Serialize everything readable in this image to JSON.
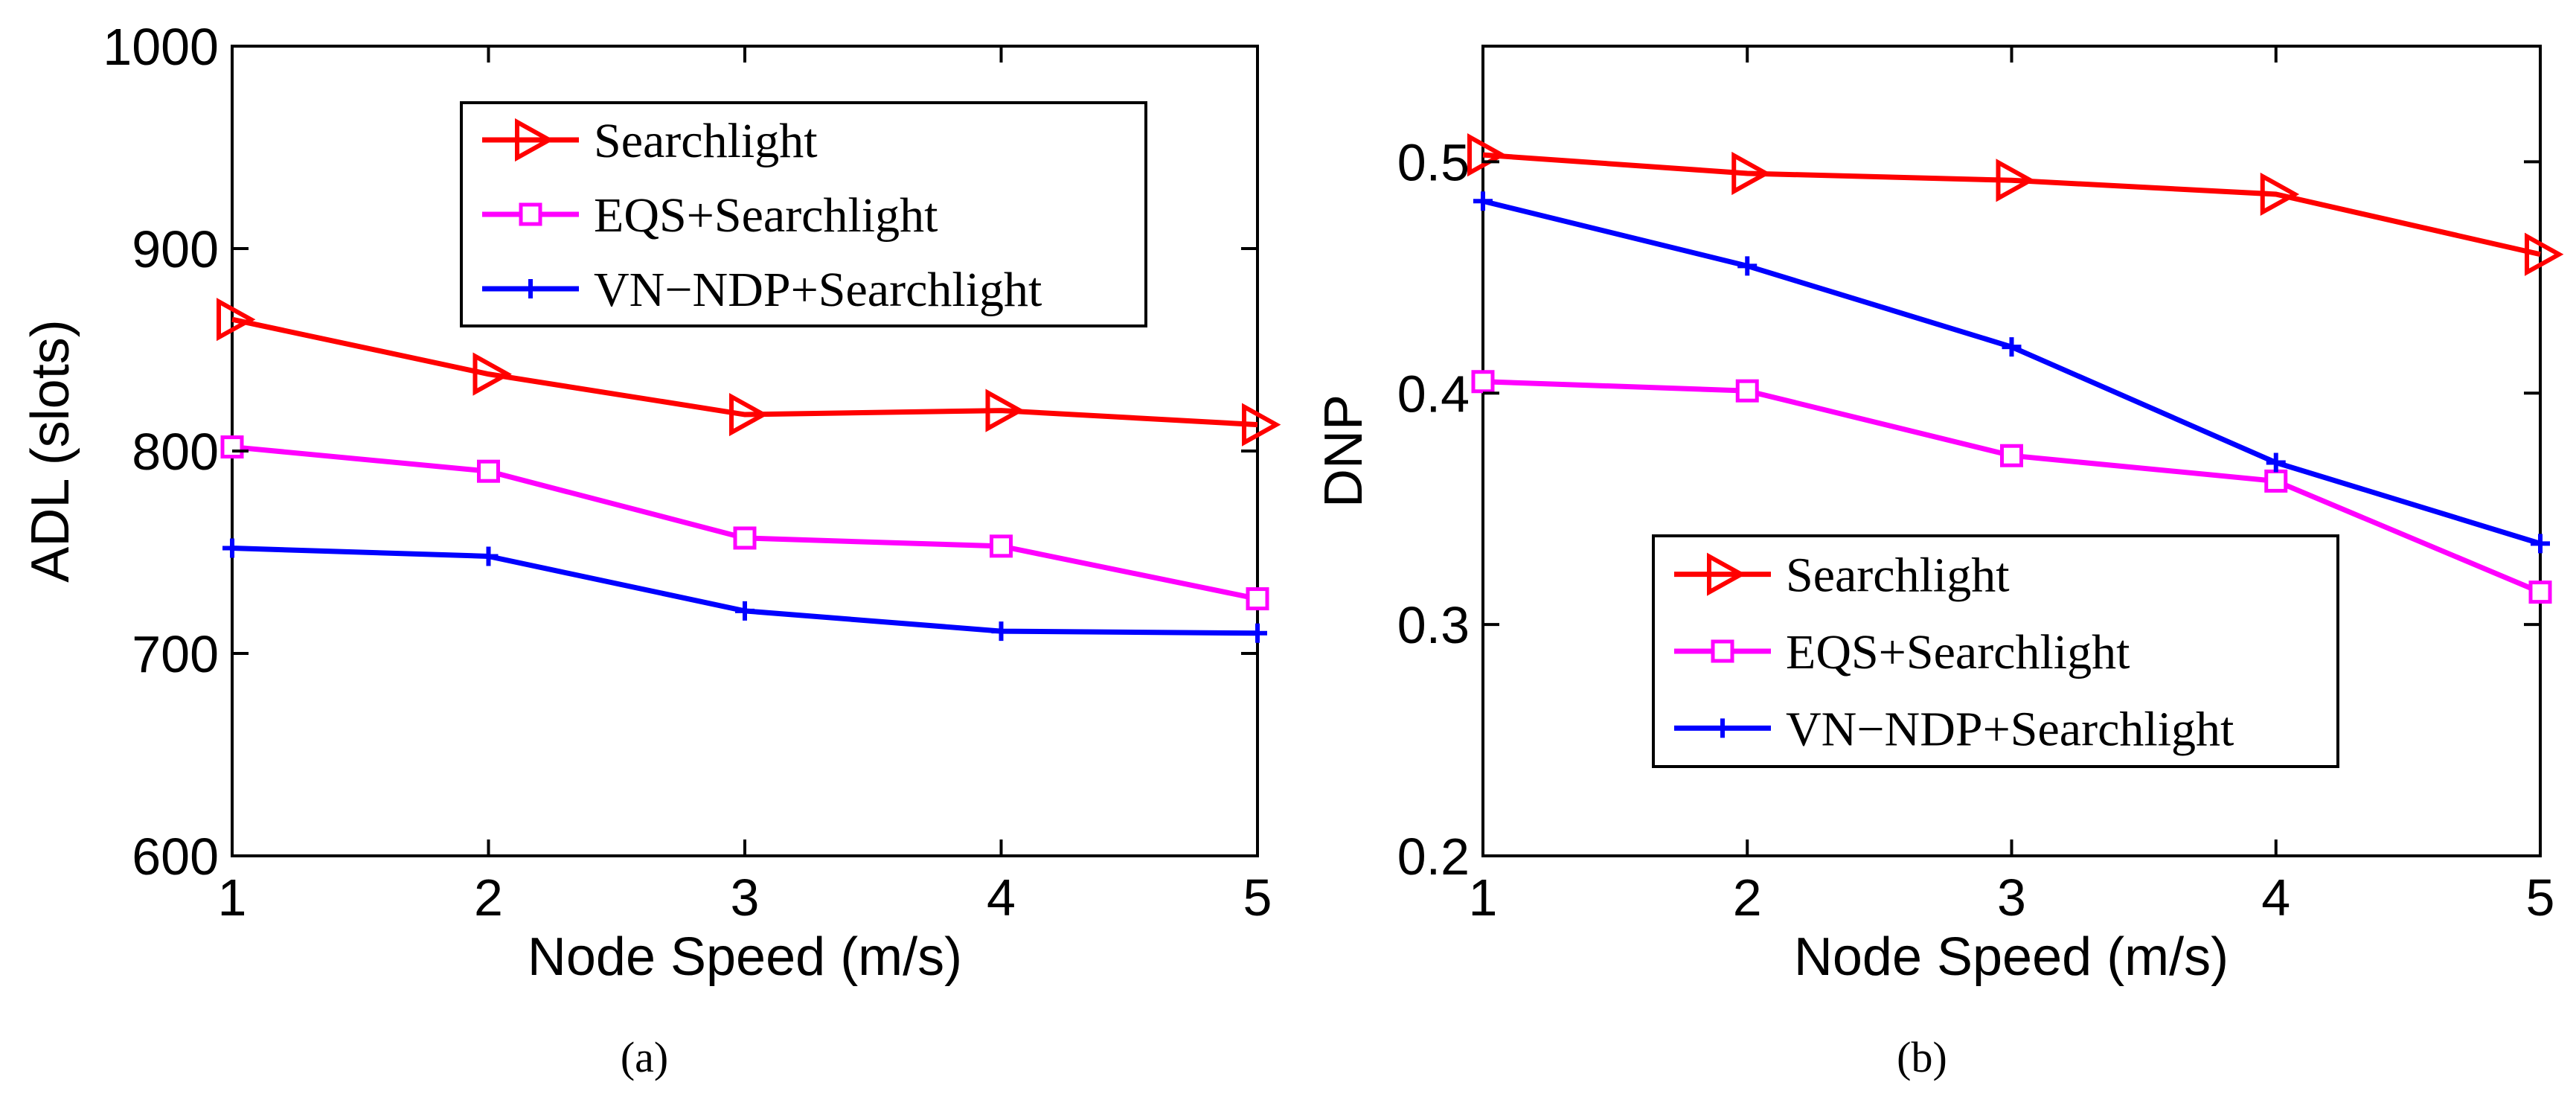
{
  "chart_data": [
    {
      "type": "line",
      "caption": "(a)",
      "xlabel": "Node Speed (m/s)",
      "ylabel": "ADL (slots)",
      "x": [
        1,
        2,
        3,
        4,
        5
      ],
      "xlim": [
        1,
        5
      ],
      "ylim": [
        600,
        1000
      ],
      "xticks": [
        "1",
        "2",
        "3",
        "4",
        "5"
      ],
      "yticks": [
        "600",
        "700",
        "800",
        "900",
        "1000"
      ],
      "grid": false,
      "legend_position": "top-right",
      "series": [
        {
          "name": "Searchlight",
          "color": "#ff0000",
          "marker": "triangle-right",
          "values": [
            865,
            838,
            818,
            820,
            813
          ]
        },
        {
          "name": "EQS+Searchlight",
          "color": "#ff00ff",
          "marker": "square",
          "values": [
            802,
            790,
            757,
            753,
            727
          ]
        },
        {
          "name": "VN−NDP+Searchlight",
          "color": "#0000ff",
          "marker": "plus",
          "values": [
            752,
            748,
            721,
            711,
            710
          ]
        }
      ]
    },
    {
      "type": "line",
      "caption": "(b)",
      "xlabel": "Node Speed (m/s)",
      "ylabel": "DNP",
      "x": [
        1,
        2,
        3,
        4,
        5
      ],
      "xlim": [
        1,
        5
      ],
      "ylim": [
        0.2,
        0.55
      ],
      "xticks": [
        "1",
        "2",
        "3",
        "4",
        "5"
      ],
      "yticks": [
        "0.2",
        "0.3",
        "0.4",
        "0.5"
      ],
      "grid": false,
      "legend_position": "bottom-right",
      "series": [
        {
          "name": "Searchlight",
          "color": "#ff0000",
          "marker": "triangle-right",
          "values": [
            0.503,
            0.495,
            0.492,
            0.486,
            0.46
          ]
        },
        {
          "name": "EQS+Searchlight",
          "color": "#ff00ff",
          "marker": "square",
          "values": [
            0.405,
            0.401,
            0.373,
            0.362,
            0.314
          ]
        },
        {
          "name": "VN−NDP+Searchlight",
          "color": "#0000ff",
          "marker": "plus",
          "values": [
            0.483,
            0.455,
            0.42,
            0.37,
            0.335
          ]
        }
      ]
    }
  ]
}
